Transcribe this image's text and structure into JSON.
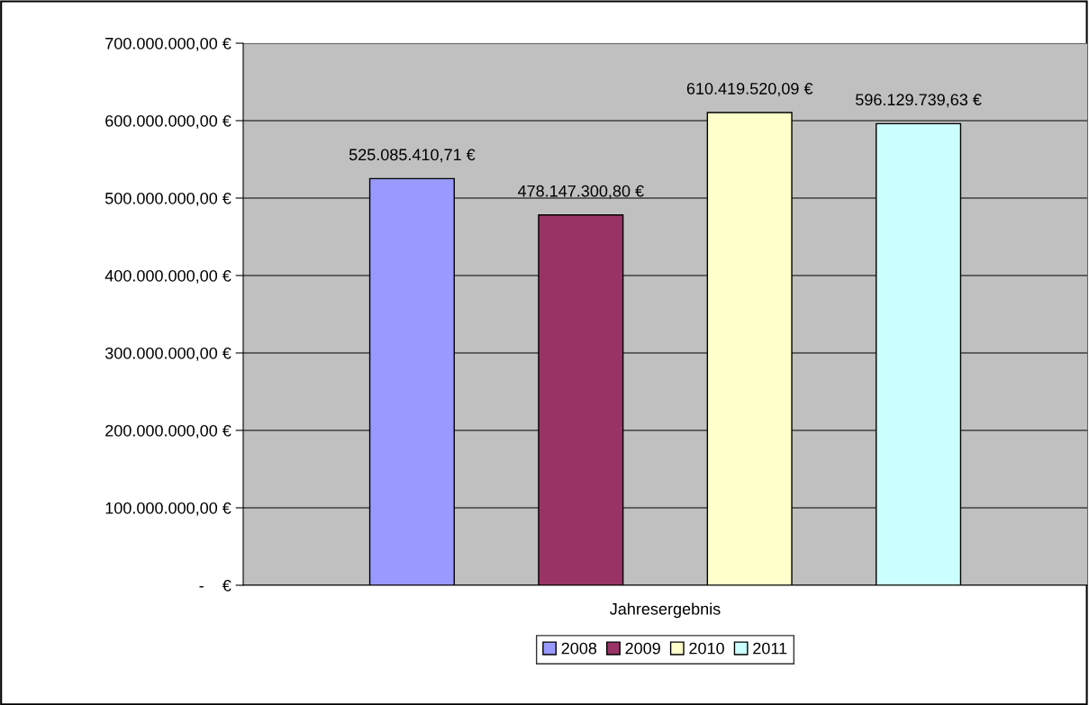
{
  "chart_data": {
    "type": "bar",
    "categories": [
      "Jahresergebnis"
    ],
    "series": [
      {
        "name": "2008",
        "color": "#9999ff",
        "values": [
          525085410.71
        ],
        "value_labels": [
          "525.085.410,71 €"
        ]
      },
      {
        "name": "2009",
        "color": "#993366",
        "values": [
          478147300.8
        ],
        "value_labels": [
          "478.147.300,80 €"
        ]
      },
      {
        "name": "2010",
        "color": "#ffffcc",
        "values": [
          610419520.09
        ],
        "value_labels": [
          "610.419.520,09 €"
        ]
      },
      {
        "name": "2011",
        "color": "#ccffff",
        "values": [
          596129739.63
        ],
        "value_labels": [
          "596.129.739,63 €"
        ]
      }
    ],
    "ylim": [
      0,
      700000000
    ],
    "yticks": [
      {
        "value": 0,
        "label": "-    €"
      },
      {
        "value": 100000000,
        "label": "100.000.000,00 €"
      },
      {
        "value": 200000000,
        "label": "200.000.000,00 €"
      },
      {
        "value": 300000000,
        "label": "300.000.000,00 €"
      },
      {
        "value": 400000000,
        "label": "400.000.000,00 €"
      },
      {
        "value": 500000000,
        "label": "500.000.000,00 €"
      },
      {
        "value": 600000000,
        "label": "600.000.000,00 €"
      },
      {
        "value": 700000000,
        "label": "700.000.000,00 €"
      }
    ],
    "grid": "y",
    "legend": "bottom"
  }
}
